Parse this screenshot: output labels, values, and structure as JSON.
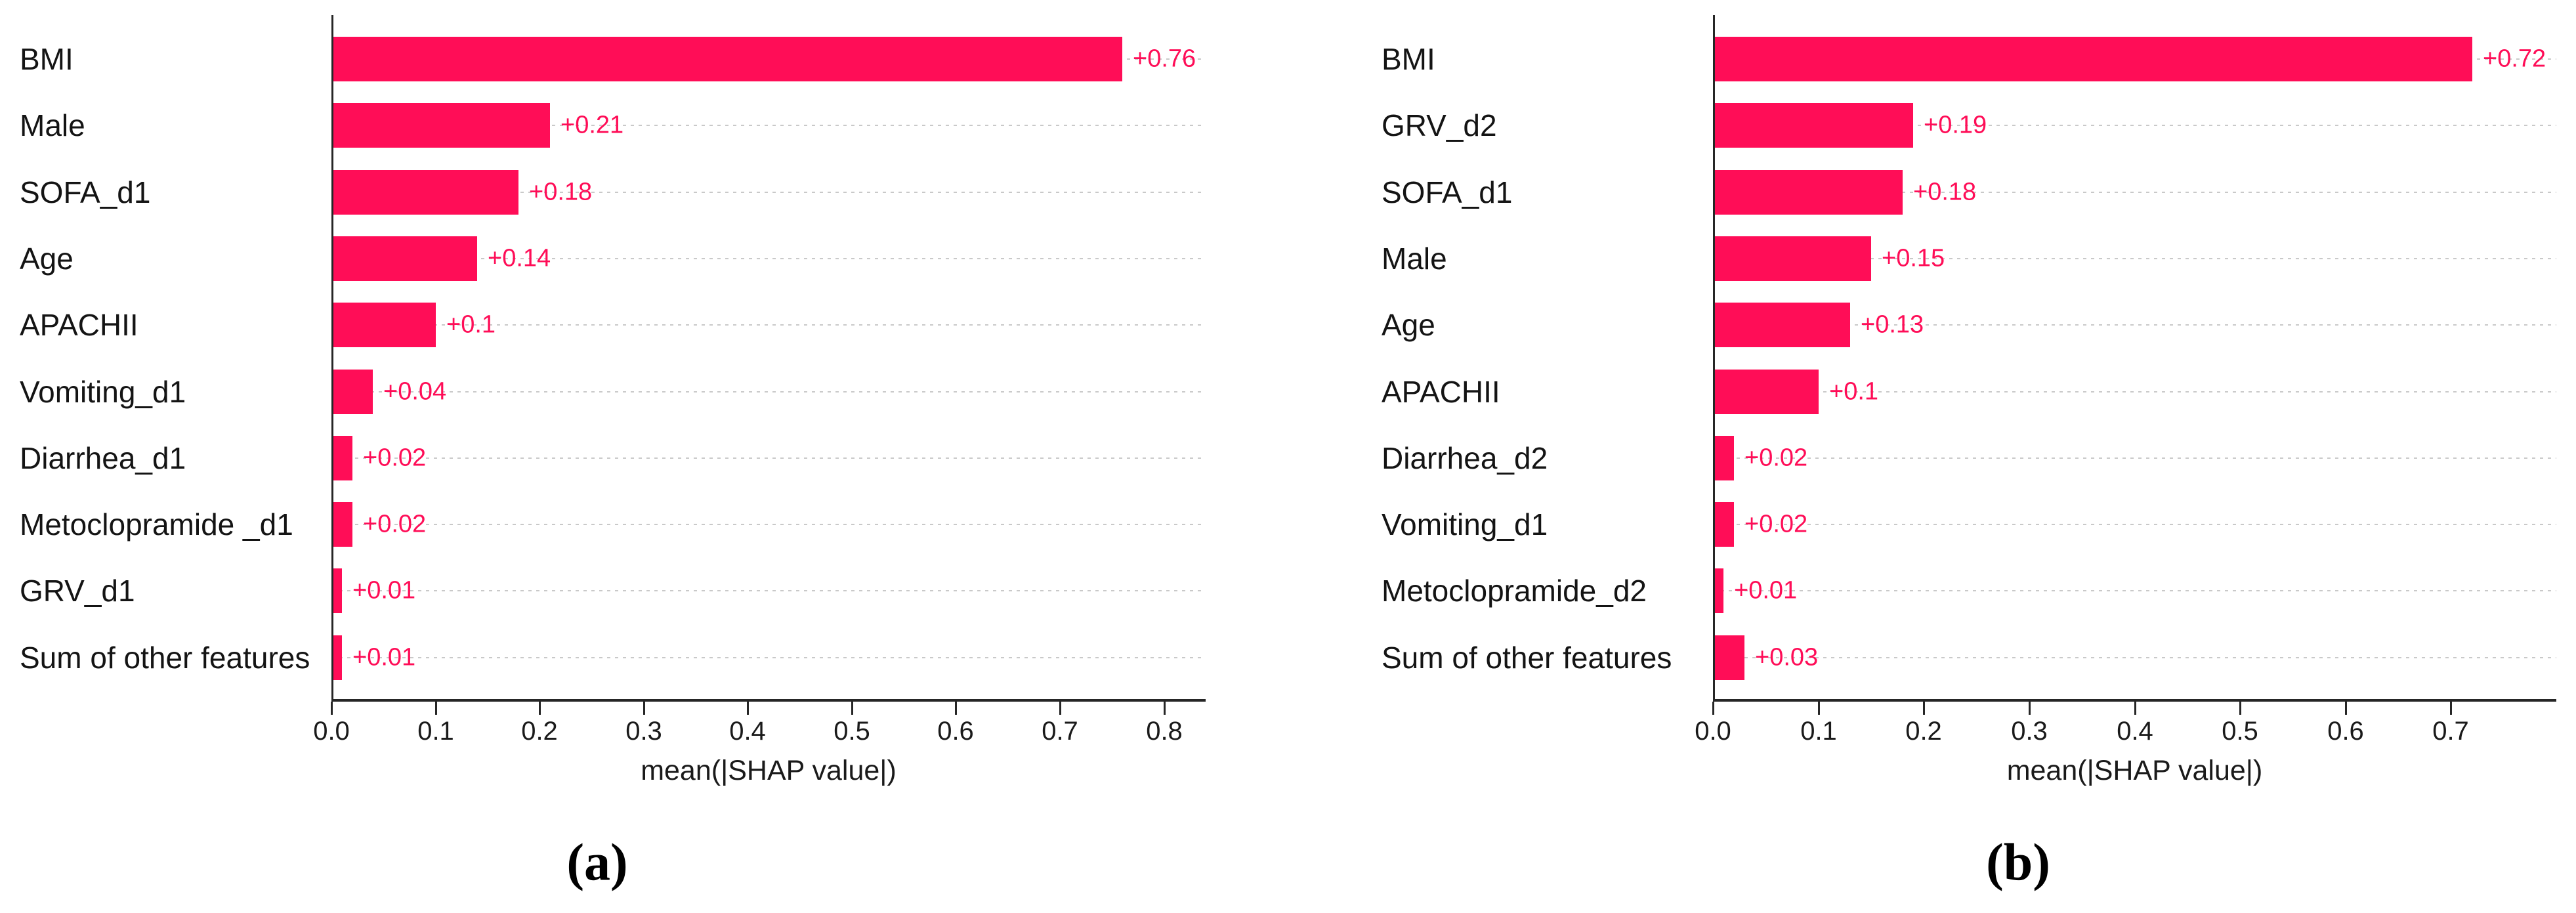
{
  "colors": {
    "bar": "#ff0d57",
    "value_label": "#ff0d57",
    "gridline": "#c9c9c9",
    "axis": "#262626",
    "text": "#141414"
  },
  "chart_data": [
    {
      "type": "bar",
      "orientation": "horizontal",
      "caption": "(a)",
      "xlabel": "mean(|SHAP value|)",
      "xlim": [
        0,
        0.84
      ],
      "x_tick_values": [
        0.0,
        0.1,
        0.2,
        0.3,
        0.4,
        0.5,
        0.6,
        0.7,
        0.8
      ],
      "x_tick_labels": [
        "0.0",
        "0.1",
        "0.2",
        "0.3",
        "0.4",
        "0.5",
        "0.6",
        "0.7",
        "0.8"
      ],
      "grid": "dotted horizontal line per bar row",
      "legend": "none",
      "categories": [
        "BMI",
        "Male",
        "SOFA_d1",
        "Age",
        "APACHII",
        "Vomiting_d1",
        "Diarrhea_d1",
        "Metoclopramide _d1",
        "GRV_d1",
        "Sum of other features"
      ],
      "values": [
        0.76,
        0.21,
        0.18,
        0.14,
        0.1,
        0.04,
        0.02,
        0.02,
        0.01,
        0.01
      ],
      "value_labels": [
        "+0.76",
        "+0.21",
        "+0.18",
        "+0.14",
        "+0.1",
        "+0.04",
        "+0.02",
        "+0.02",
        "+0.01",
        "+0.01"
      ]
    },
    {
      "type": "bar",
      "orientation": "horizontal",
      "caption": "(b)",
      "xlabel": "mean(|SHAP value|)",
      "xlim": [
        0,
        0.8
      ],
      "x_tick_values": [
        0.0,
        0.1,
        0.2,
        0.3,
        0.4,
        0.5,
        0.6,
        0.7
      ],
      "x_tick_labels": [
        "0.0",
        "0.1",
        "0.2",
        "0.3",
        "0.4",
        "0.5",
        "0.6",
        "0.7"
      ],
      "grid": "dotted horizontal line per bar row",
      "legend": "none",
      "categories": [
        "BMI",
        "GRV_d2",
        "SOFA_d1",
        "Male",
        "Age",
        "APACHII",
        "Diarrhea_d2",
        "Vomiting_d1",
        "Metoclopramide_d2",
        "Sum of other features"
      ],
      "values": [
        0.72,
        0.19,
        0.18,
        0.15,
        0.13,
        0.1,
        0.02,
        0.02,
        0.01,
        0.03
      ],
      "value_labels": [
        "+0.72",
        "+0.19",
        "+0.18",
        "+0.15",
        "+0.13",
        "+0.1",
        "+0.02",
        "+0.02",
        "+0.01",
        "+0.03"
      ]
    }
  ]
}
